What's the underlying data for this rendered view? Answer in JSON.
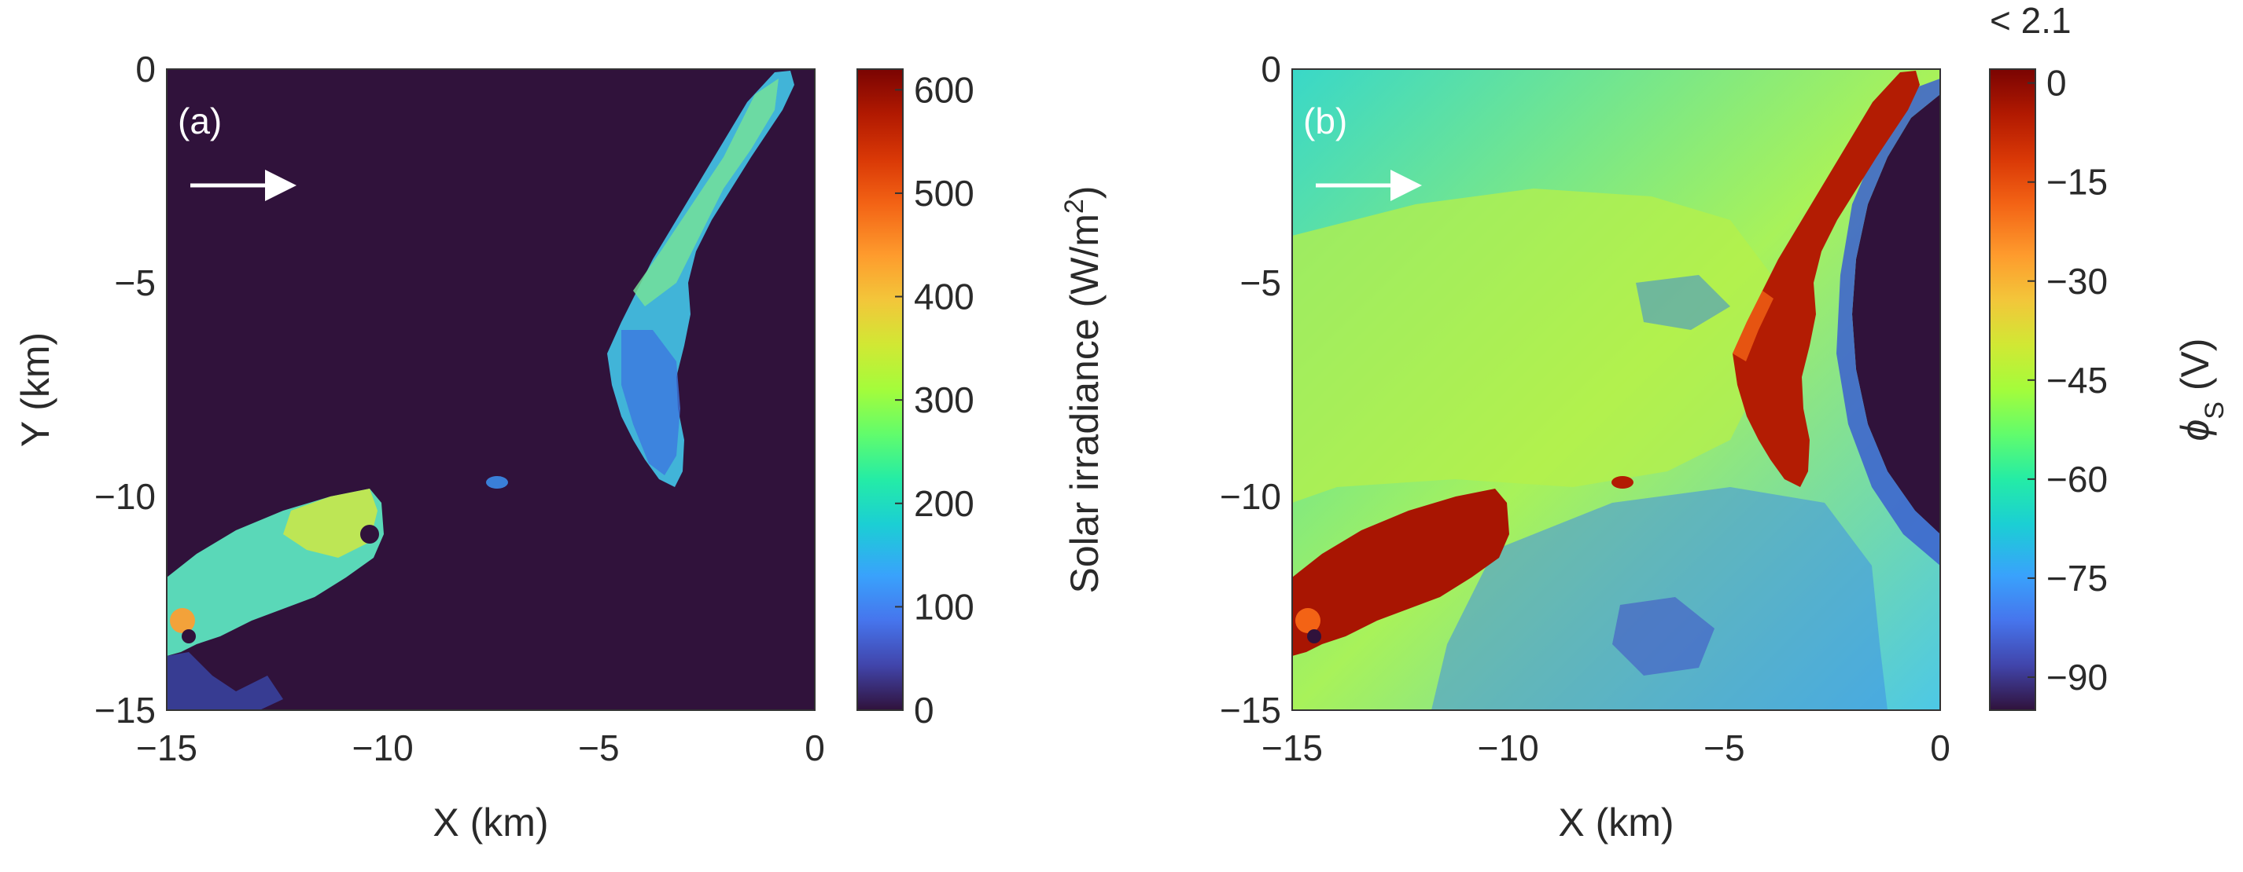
{
  "chart_data": [
    {
      "type": "heatmap",
      "panel_label": "(a)",
      "xlabel": "X (km)",
      "ylabel": "Y (km)",
      "xlim": [
        -15,
        0
      ],
      "ylim": [
        -15,
        0
      ],
      "xticks": [
        "−15",
        "−10",
        "−5",
        "0"
      ],
      "yticks": [
        "0",
        "−5",
        "−10",
        "−15"
      ],
      "colorbar": {
        "label": "Solar irradiance (W/m",
        "label_sup": "2",
        "label_end": ")",
        "range": [
          0,
          620
        ],
        "ticks": [
          "600",
          "500",
          "400",
          "300",
          "200",
          "100",
          "0"
        ],
        "tick_values": [
          600,
          500,
          400,
          300,
          200,
          100,
          0
        ]
      },
      "arrow": "incident-sunlight-arrow",
      "background_value": 0,
      "regions": [
        {
          "name": "crater-rim-ridge",
          "value": 260
        },
        {
          "name": "lower-left-slope",
          "value": 250
        },
        {
          "name": "small-spot",
          "value": 150
        }
      ]
    },
    {
      "type": "heatmap",
      "panel_label": "(b)",
      "xlabel": "X (km)",
      "ylabel": "",
      "xlim": [
        -15,
        0
      ],
      "ylim": [
        -15,
        0
      ],
      "xticks": [
        "−15",
        "−10",
        "−5",
        "0"
      ],
      "yticks": [
        "0",
        "−5",
        "−10",
        "−15"
      ],
      "colorbar": {
        "label": "ϕ",
        "label_sub": "S",
        "label_end": " (V)",
        "range": [
          -95,
          2.1
        ],
        "top_note": "< 2.1",
        "ticks": [
          "0",
          "−15",
          "−30",
          "−45",
          "−60",
          "−75",
          "−90"
        ],
        "tick_values": [
          0,
          -15,
          -30,
          -45,
          -60,
          -75,
          -90
        ]
      },
      "arrow": "incident-sunlight-arrow",
      "background_value": -45,
      "regions": [
        {
          "name": "sunlit-ridge",
          "value": 0
        },
        {
          "name": "sunlit-lower-left",
          "value": 0
        },
        {
          "name": "crater-shadow-right",
          "value": -92
        },
        {
          "name": "rough-terrain-south",
          "value": -70
        }
      ]
    }
  ]
}
